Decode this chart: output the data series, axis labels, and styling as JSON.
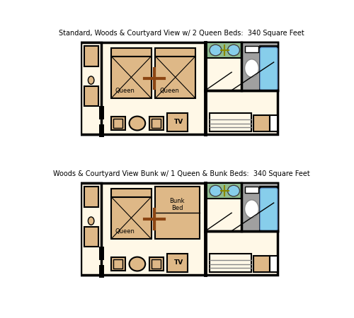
{
  "floor_color": "#FFF8E7",
  "wall_color": "#000000",
  "wall_lw": 2.5,
  "furn_color": "#DEB887",
  "bath_green": "#8FBC8F",
  "bath_blue": "#87CEEB",
  "bath_gray": "#A0A0A0",
  "title1": "Standard, Woods & Courtyard View w/ 2 Queen Beds:  340 Square Feet",
  "title2": "Woods & Courtyard View Bunk w/ 1 Queen & Bunk Beds:  340 Square Feet"
}
